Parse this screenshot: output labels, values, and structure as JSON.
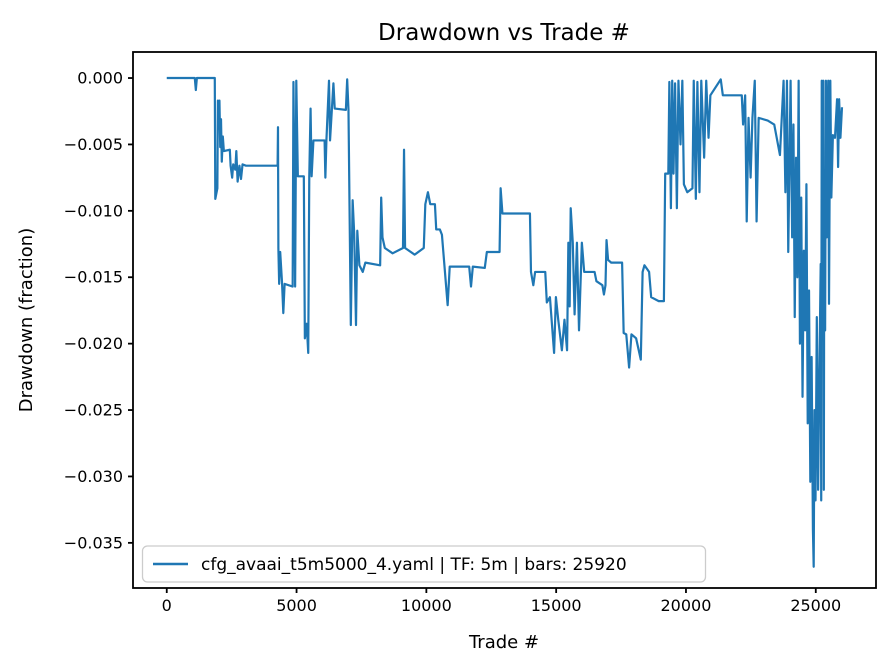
{
  "figure": {
    "background": "#ffffff",
    "spine_color": "#000000"
  },
  "chart_data": {
    "type": "line",
    "title": "Drawdown vs Trade #",
    "xlabel": "Trade #",
    "ylabel": "Drawdown (fraction)",
    "grid": false,
    "legend_position": "lower left",
    "legend": [
      {
        "label": "cfg_avaai_t5m5000_4.yaml | TF: 5m | bars: 25920",
        "color": "#1f77b4"
      }
    ],
    "line_color": "#1f77b4",
    "xlim": [
      -1300,
      27320
    ],
    "ylim": [
      -0.0384,
      0.00196
    ],
    "xticks": [
      0,
      5000,
      10000,
      15000,
      20000,
      25000
    ],
    "yticks": [
      0,
      -0.005,
      -0.01,
      -0.015,
      -0.02,
      -0.025,
      -0.03,
      -0.035
    ],
    "series": [
      {
        "name": "cfg_avaai_t5m5000_4.yaml | TF: 5m | bars: 25920",
        "points": [
          [
            0,
            0
          ],
          [
            1080,
            0
          ],
          [
            1120,
            -0.0009
          ],
          [
            1160,
            0
          ],
          [
            1850,
            0
          ],
          [
            1870,
            -0.0091
          ],
          [
            1950,
            -0.0083
          ],
          [
            1970,
            -0.0017
          ],
          [
            2000,
            -0.0031
          ],
          [
            2030,
            -0.0017
          ],
          [
            2060,
            -0.0052
          ],
          [
            2090,
            -0.0031
          ],
          [
            2120,
            -0.0063
          ],
          [
            2160,
            -0.0044
          ],
          [
            2200,
            -0.0055
          ],
          [
            2430,
            -0.0054
          ],
          [
            2460,
            -0.0066
          ],
          [
            2520,
            -0.0075
          ],
          [
            2560,
            -0.0065
          ],
          [
            2640,
            -0.0069
          ],
          [
            2680,
            -0.0055
          ],
          [
            2730,
            -0.0078
          ],
          [
            2800,
            -0.0066
          ],
          [
            2860,
            -0.0076
          ],
          [
            2920,
            -0.0065
          ],
          [
            3050,
            -0.0066
          ],
          [
            4270,
            -0.0066
          ],
          [
            4285,
            -0.0037
          ],
          [
            4300,
            -0.0128
          ],
          [
            4330,
            -0.0155
          ],
          [
            4370,
            -0.0131
          ],
          [
            4440,
            -0.0154
          ],
          [
            4490,
            -0.0177
          ],
          [
            4540,
            -0.0155
          ],
          [
            4850,
            -0.0157
          ],
          [
            4880,
            -0.0003
          ],
          [
            4915,
            -0.0075
          ],
          [
            4945,
            -0.0157
          ],
          [
            4990,
            -0.0002
          ],
          [
            5050,
            -0.0074
          ],
          [
            5280,
            -0.0074
          ],
          [
            5320,
            -0.0196
          ],
          [
            5390,
            -0.0185
          ],
          [
            5450,
            -0.0207
          ],
          [
            5490,
            -0.0074
          ],
          [
            5540,
            -0.0023
          ],
          [
            5580,
            -0.0074
          ],
          [
            5650,
            -0.0047
          ],
          [
            6080,
            -0.0047
          ],
          [
            6110,
            -0.0075
          ],
          [
            6150,
            -0.0047
          ],
          [
            6250,
            -0.0002
          ],
          [
            6290,
            -0.0047
          ],
          [
            6420,
            -0.0004
          ],
          [
            6470,
            -0.0023
          ],
          [
            6900,
            -0.0024
          ],
          [
            6950,
            -0.0001
          ],
          [
            7000,
            -0.0024
          ],
          [
            7040,
            -0.0096
          ],
          [
            7090,
            -0.0186
          ],
          [
            7160,
            -0.0092
          ],
          [
            7220,
            -0.0117
          ],
          [
            7290,
            -0.0186
          ],
          [
            7340,
            -0.0115
          ],
          [
            7420,
            -0.0141
          ],
          [
            7550,
            -0.0146
          ],
          [
            7650,
            -0.0139
          ],
          [
            8220,
            -0.0141
          ],
          [
            8260,
            -0.009
          ],
          [
            8310,
            -0.012
          ],
          [
            8400,
            -0.0128
          ],
          [
            8700,
            -0.0132
          ],
          [
            9100,
            -0.0128
          ],
          [
            9140,
            -0.0054
          ],
          [
            9180,
            -0.0128
          ],
          [
            9550,
            -0.0133
          ],
          [
            9900,
            -0.0128
          ],
          [
            9960,
            -0.0095
          ],
          [
            10060,
            -0.0086
          ],
          [
            10150,
            -0.0095
          ],
          [
            10330,
            -0.0095
          ],
          [
            10380,
            -0.0114
          ],
          [
            10520,
            -0.0114
          ],
          [
            10600,
            -0.0118
          ],
          [
            10820,
            -0.0171
          ],
          [
            10900,
            -0.0142
          ],
          [
            11650,
            -0.0142
          ],
          [
            11720,
            -0.0157
          ],
          [
            11790,
            -0.0142
          ],
          [
            12250,
            -0.0143
          ],
          [
            12330,
            -0.0131
          ],
          [
            12820,
            -0.0131
          ],
          [
            12860,
            -0.0083
          ],
          [
            12930,
            -0.0102
          ],
          [
            13990,
            -0.0102
          ],
          [
            14030,
            -0.0146
          ],
          [
            14120,
            -0.0156
          ],
          [
            14190,
            -0.0146
          ],
          [
            14580,
            -0.0146
          ],
          [
            14640,
            -0.0169
          ],
          [
            14760,
            -0.0165
          ],
          [
            14920,
            -0.0207
          ],
          [
            14990,
            -0.0165
          ],
          [
            15080,
            -0.0182
          ],
          [
            15220,
            -0.0205
          ],
          [
            15320,
            -0.0182
          ],
          [
            15420,
            -0.0205
          ],
          [
            15470,
            -0.0124
          ],
          [
            15520,
            -0.0172
          ],
          [
            15560,
            -0.0098
          ],
          [
            15640,
            -0.0124
          ],
          [
            15710,
            -0.0178
          ],
          [
            15800,
            -0.0124
          ],
          [
            15880,
            -0.019
          ],
          [
            15990,
            -0.0124
          ],
          [
            16080,
            -0.0146
          ],
          [
            16480,
            -0.0146
          ],
          [
            16550,
            -0.0153
          ],
          [
            16780,
            -0.0156
          ],
          [
            16840,
            -0.0163
          ],
          [
            16900,
            -0.0156
          ],
          [
            16940,
            -0.0122
          ],
          [
            17000,
            -0.0137
          ],
          [
            17120,
            -0.0139
          ],
          [
            17540,
            -0.0139
          ],
          [
            17600,
            -0.0192
          ],
          [
            17700,
            -0.0193
          ],
          [
            17810,
            -0.0218
          ],
          [
            17900,
            -0.0193
          ],
          [
            18080,
            -0.0196
          ],
          [
            18260,
            -0.0212
          ],
          [
            18330,
            -0.0146
          ],
          [
            18400,
            -0.0141
          ],
          [
            18580,
            -0.0146
          ],
          [
            18660,
            -0.0165
          ],
          [
            18950,
            -0.0168
          ],
          [
            19150,
            -0.0168
          ],
          [
            19200,
            -0.0072
          ],
          [
            19320,
            -0.0072
          ],
          [
            19360,
            -0.0003
          ],
          [
            19420,
            -0.0098
          ],
          [
            19470,
            -0.0002
          ],
          [
            19520,
            -0.0072
          ],
          [
            19580,
            -0.0004
          ],
          [
            19650,
            -0.0098
          ],
          [
            19710,
            -0.0002
          ],
          [
            19790,
            -0.005
          ],
          [
            19860,
            -0.0002
          ],
          [
            19920,
            -0.008
          ],
          [
            20050,
            -0.0086
          ],
          [
            20250,
            -0.0083
          ],
          [
            20300,
            -0.0002
          ],
          [
            20380,
            -0.0091
          ],
          [
            20440,
            -0.0003
          ],
          [
            20520,
            -0.0086
          ],
          [
            20590,
            -0.0002
          ],
          [
            20700,
            -0.006
          ],
          [
            20780,
            -0.0002
          ],
          [
            20870,
            -0.0045
          ],
          [
            20940,
            -0.0013
          ],
          [
            21340,
            -0.0001
          ],
          [
            21420,
            -0.0013
          ],
          [
            22150,
            -0.0013
          ],
          [
            22200,
            -0.0035
          ],
          [
            22280,
            -0.0013
          ],
          [
            22340,
            -0.0108
          ],
          [
            22410,
            -0.003
          ],
          [
            22490,
            -0.0075
          ],
          [
            22560,
            -0.003
          ],
          [
            22650,
            -0.0002
          ],
          [
            22720,
            -0.0108
          ],
          [
            22800,
            -0.003
          ],
          [
            23150,
            -0.0032
          ],
          [
            23400,
            -0.0035
          ],
          [
            23620,
            -0.0058
          ],
          [
            23690,
            -0.003
          ],
          [
            23760,
            -0.0002
          ],
          [
            23830,
            -0.0086
          ],
          [
            23890,
            -0.0002
          ],
          [
            23940,
            -0.0131
          ],
          [
            24030,
            -0.0002
          ],
          [
            24090,
            -0.012
          ],
          [
            24140,
            -0.0035
          ],
          [
            24190,
            -0.018
          ],
          [
            24240,
            -0.006
          ],
          [
            24290,
            -0.015
          ],
          [
            24340,
            -0.0002
          ],
          [
            24390,
            -0.02
          ],
          [
            24440,
            -0.009
          ],
          [
            24490,
            -0.024
          ],
          [
            24540,
            -0.013
          ],
          [
            24590,
            -0.019
          ],
          [
            24640,
            -0.008
          ],
          [
            24690,
            -0.026
          ],
          [
            24740,
            -0.016
          ],
          [
            24790,
            -0.0304
          ],
          [
            24840,
            -0.021
          ],
          [
            24890,
            -0.034
          ],
          [
            24920,
            -0.0368
          ],
          [
            24950,
            -0.025
          ],
          [
            24990,
            -0.0318
          ],
          [
            25040,
            -0.018
          ],
          [
            25090,
            -0.031
          ],
          [
            25140,
            -0.022
          ],
          [
            25190,
            -0.014
          ],
          [
            25210,
            -0.0318
          ],
          [
            25230,
            -0.0002
          ],
          [
            25260,
            -0.013
          ],
          [
            25290,
            -0.0002
          ],
          [
            25310,
            -0.031
          ],
          [
            25330,
            -0.008
          ],
          [
            25360,
            -0.019
          ],
          [
            25390,
            -0.0002
          ],
          [
            25420,
            -0.012
          ],
          [
            25450,
            -0.004
          ],
          [
            25480,
            -0.0002
          ],
          [
            25510,
            -0.017
          ],
          [
            25540,
            -0.006
          ],
          [
            25560,
            -0.0002
          ],
          [
            25600,
            -0.009
          ],
          [
            25660,
            -0.0043
          ],
          [
            25740,
            -0.0045
          ],
          [
            25820,
            -0.0016
          ],
          [
            25860,
            -0.0067
          ],
          [
            25900,
            -0.0016
          ],
          [
            25950,
            -0.0045
          ],
          [
            26010,
            -0.0022
          ]
        ]
      }
    ]
  }
}
